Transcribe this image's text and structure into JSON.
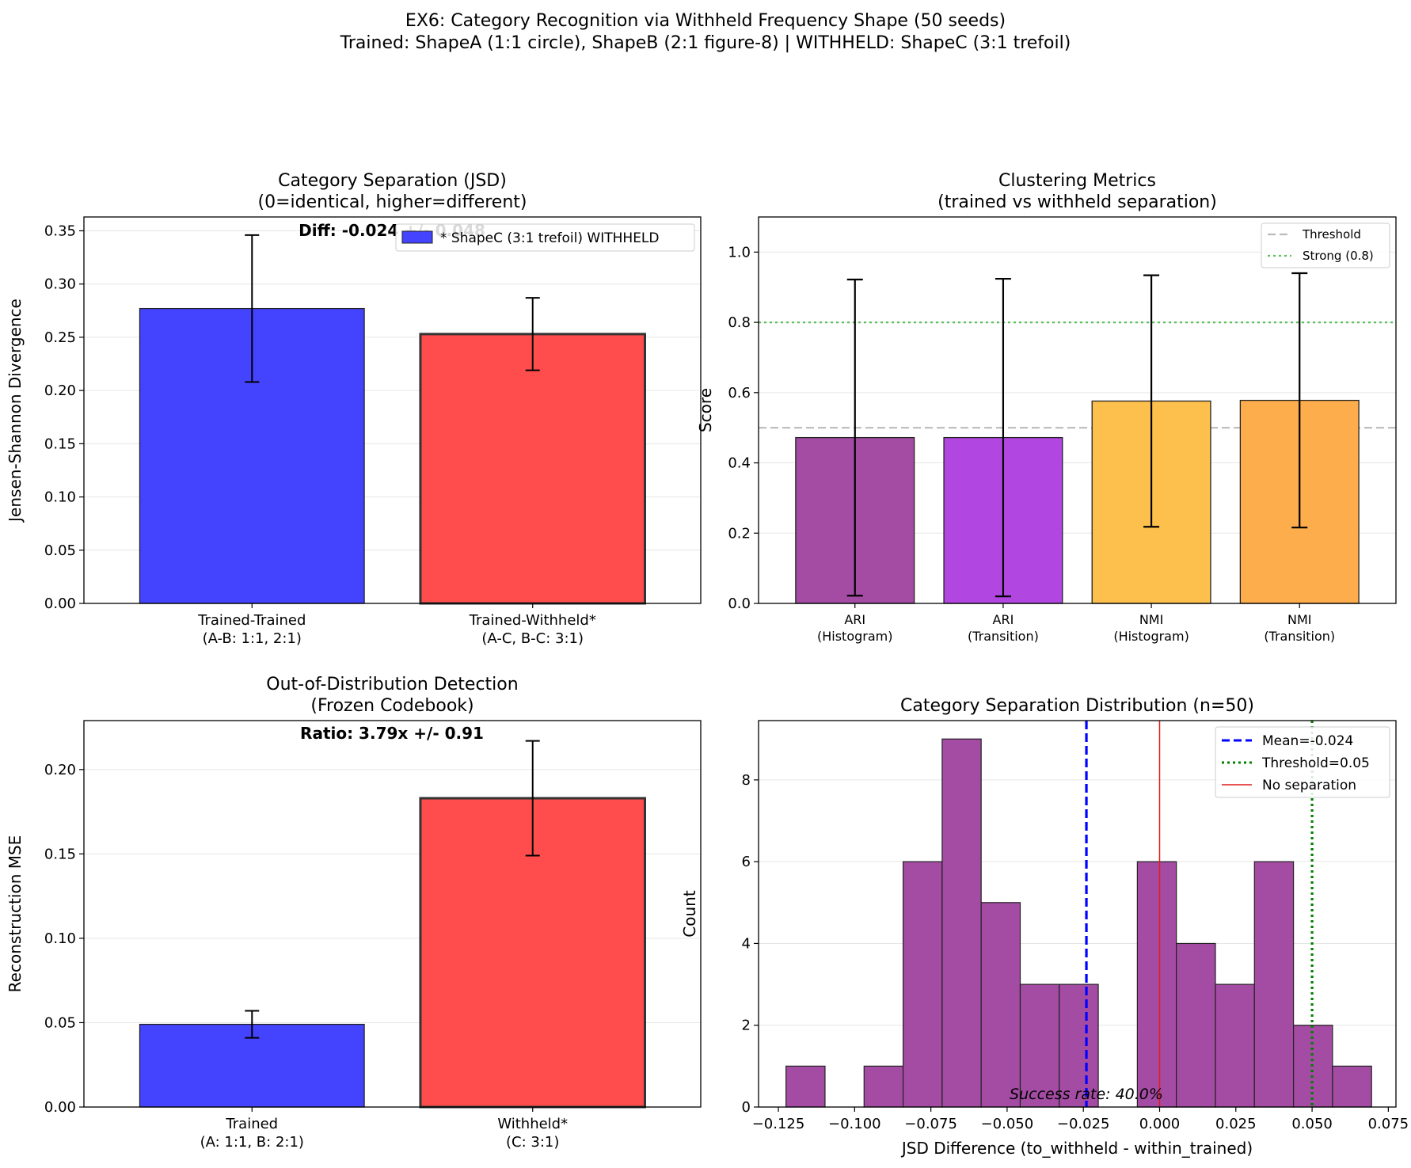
{
  "figure": {
    "title_line1": "EX6: Category Recognition via Withheld Frequency Shape (50 seeds)",
    "title_line2": "Trained: ShapeA (1:1 circle), ShapeB (2:1 figure-8) | WITHHELD: ShapeC (3:1 trefoil)"
  },
  "chart_data": [
    {
      "id": "jsd",
      "type": "bar",
      "title_line1": "Category Separation (JSD)",
      "title_line2": "(0=identical, higher=different)",
      "ylabel": "Jensen-Shannon Divergence",
      "ylim": [
        0,
        0.363
      ],
      "yticks": [
        0,
        0.05,
        0.1,
        0.15,
        0.2,
        0.25,
        0.3,
        0.35
      ],
      "ytick_labels": [
        "0.00",
        "0.05",
        "0.10",
        "0.15",
        "0.20",
        "0.25",
        "0.30",
        "0.35"
      ],
      "grid": "y",
      "categories": [
        {
          "line1": "Trained-Trained",
          "line2": "(A-B: 1:1, 2:1)"
        },
        {
          "line1": "Trained-Withheld*",
          "line2": "(A-C, B-C: 3:1)"
        }
      ],
      "values": [
        0.277,
        0.253
      ],
      "errors": [
        0.069,
        0.034
      ],
      "colors": [
        "#4444ff",
        "#ff4c4c"
      ],
      "annotation": "Diff: -0.024 +/- 0.048",
      "legend": [
        {
          "label": "* ShapeC (3:1 trefoil) WITHHELD",
          "color": "#4444ff"
        }
      ],
      "legend_position": "top-right"
    },
    {
      "id": "clustering",
      "type": "bar",
      "title_line1": "Clustering Metrics",
      "title_line2": "(trained vs withheld separation)",
      "ylabel": "Score",
      "ylim": [
        0,
        1.1
      ],
      "yticks": [
        0,
        0.2,
        0.4,
        0.6,
        0.8,
        1.0
      ],
      "ytick_labels": [
        "0.0",
        "0.2",
        "0.4",
        "0.6",
        "0.8",
        "1.0"
      ],
      "grid": "y",
      "categories": [
        {
          "line1": "ARI",
          "line2": "(Histogram)"
        },
        {
          "line1": "ARI",
          "line2": "(Transition)"
        },
        {
          "line1": "NMI",
          "line2": "(Histogram)"
        },
        {
          "line1": "NMI",
          "line2": "(Transition)"
        }
      ],
      "values": [
        0.472,
        0.472,
        0.576,
        0.578
      ],
      "errors": [
        0.45,
        0.452,
        0.358,
        0.362
      ],
      "colors": [
        "#a44ca4",
        "#b146e0",
        "#fec04d",
        "#fdad4c"
      ],
      "hlines": [
        {
          "value": 0.5,
          "label": "Threshold",
          "color": "#bbbbbb",
          "style": "dashed"
        },
        {
          "value": 0.8,
          "label": "Strong (0.8)",
          "color": "#5cc05c",
          "style": "dotted"
        }
      ],
      "legend_position": "top-right"
    },
    {
      "id": "ood",
      "type": "bar",
      "title_line1": "Out-of-Distribution Detection",
      "title_line2": "(Frozen Codebook)",
      "ylabel": "Reconstruction MSE",
      "ylim": [
        0,
        0.229
      ],
      "yticks": [
        0,
        0.05,
        0.1,
        0.15,
        0.2
      ],
      "ytick_labels": [
        "0.00",
        "0.05",
        "0.10",
        "0.15",
        "0.20"
      ],
      "grid": "y",
      "categories": [
        {
          "line1": "Trained",
          "line2": "(A: 1:1, B: 2:1)"
        },
        {
          "line1": "Withheld*",
          "line2": "(C: 3:1)"
        }
      ],
      "values": [
        0.049,
        0.183
      ],
      "errors": [
        0.008,
        0.034
      ],
      "colors": [
        "#4444ff",
        "#ff4c4c"
      ],
      "annotation": "Ratio: 3.79x +/- 0.91"
    },
    {
      "id": "hist",
      "type": "histogram",
      "title": "Category Separation Distribution (n=50)",
      "xlabel": "JSD Difference (to_withheld - within_trained)",
      "ylabel": "Count",
      "xlim": [
        -0.1315,
        0.0775
      ],
      "ylim": [
        0,
        9.45
      ],
      "xticks": [
        -0.125,
        -0.1,
        -0.075,
        -0.05,
        -0.025,
        0,
        0.025,
        0.05,
        0.075
      ],
      "xtick_labels": [
        "−0.125",
        "−0.100",
        "−0.075",
        "−0.050",
        "−0.025",
        "0.000",
        "0.025",
        "0.050",
        "0.075"
      ],
      "yticks": [
        0,
        2,
        4,
        6,
        8
      ],
      "ytick_labels": [
        "0",
        "2",
        "4",
        "6",
        "8"
      ],
      "grid": "y",
      "bin_start": -0.1225,
      "bin_width": 0.0128,
      "counts": [
        1,
        0,
        1,
        6,
        9,
        5,
        3,
        3,
        0,
        6,
        4,
        3,
        6,
        2,
        1
      ],
      "bar_color": "#a44ca4",
      "vlines": [
        {
          "value": -0.024,
          "label": "Mean=-0.024",
          "color": "#0000ff",
          "style": "dashed"
        },
        {
          "value": 0.05,
          "label": "Threshold=0.05",
          "color": "#008000",
          "style": "dotted"
        },
        {
          "value": 0.0,
          "label": "No separation",
          "color": "#e41a1c",
          "style": "solid"
        }
      ],
      "annotation": "Success rate: 40.0%",
      "legend_position": "top-right"
    }
  ]
}
